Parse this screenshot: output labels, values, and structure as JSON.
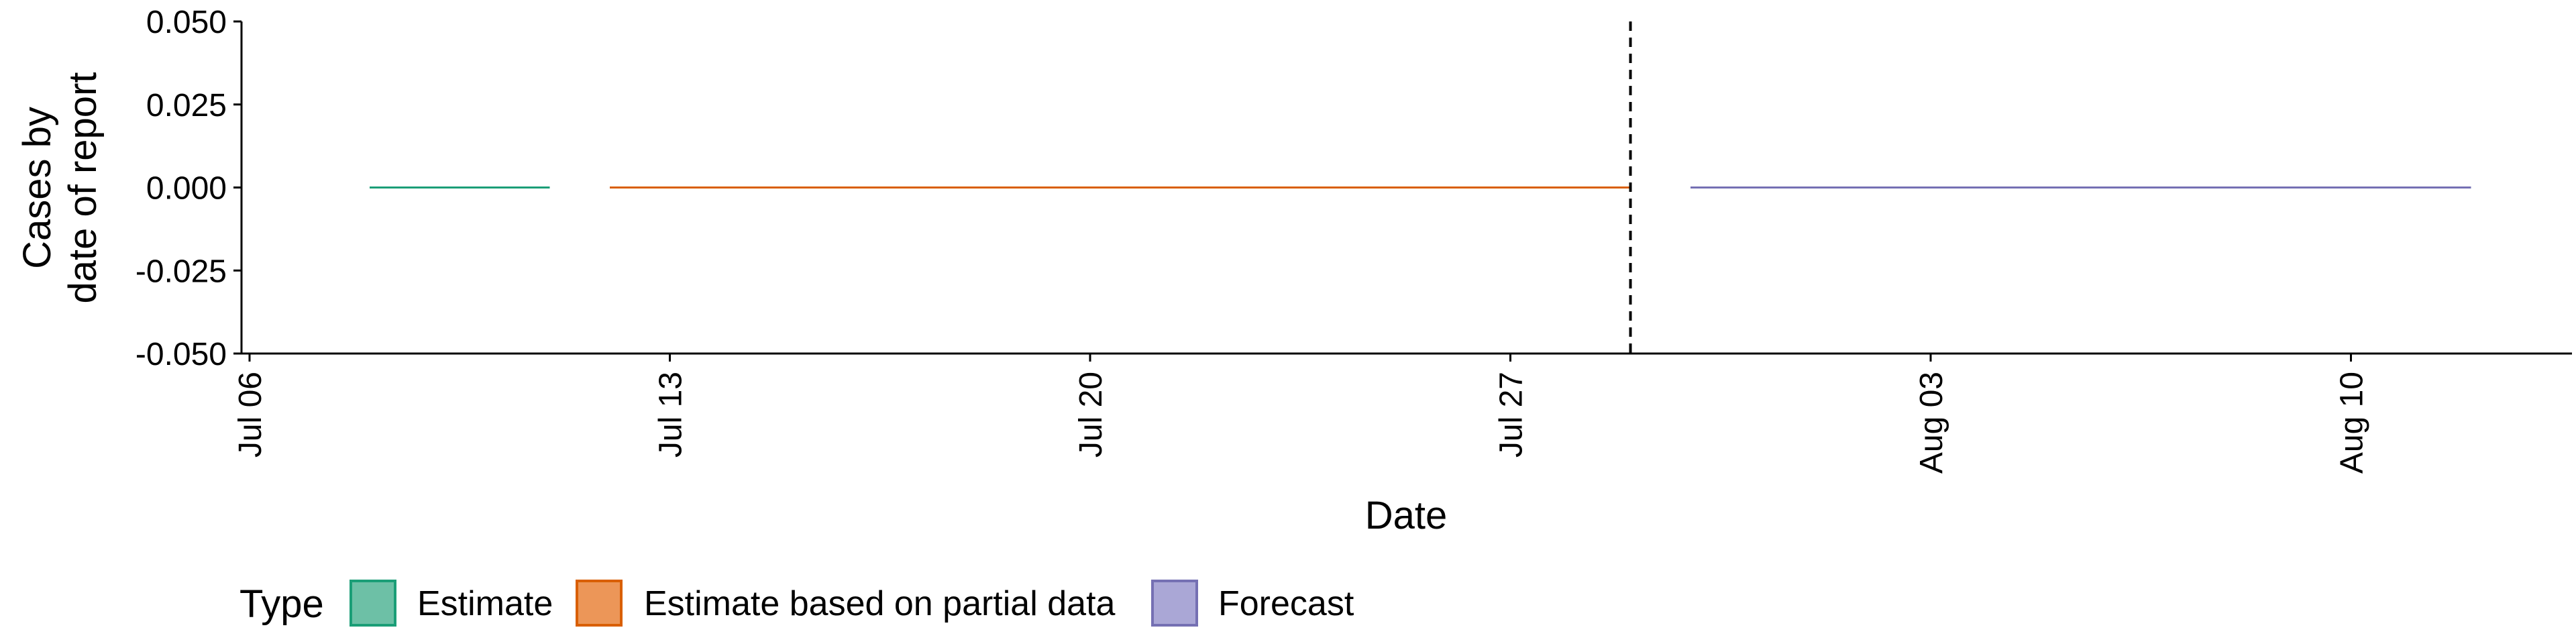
{
  "chart_data": {
    "type": "line",
    "title": "",
    "xlabel": "Date",
    "ylabel_lines": [
      "Cases by",
      "date of report"
    ],
    "x_tick_labels": [
      "Jul 06",
      "Jul 13",
      "Jul 20",
      "Jul 27",
      "Aug 03",
      "Aug 10"
    ],
    "x_ticks": [
      "2020-07-06",
      "2020-07-13",
      "2020-07-20",
      "2020-07-27",
      "2020-08-03",
      "2020-08-10"
    ],
    "xlim": [
      "2020-07-06",
      "2020-08-14"
    ],
    "y_ticks": [
      0.05,
      0.025,
      0.0,
      -0.025,
      -0.05
    ],
    "y_tick_labels": [
      "0.050",
      "0.025",
      "0.000",
      "-0.025",
      "-0.050"
    ],
    "ylim": [
      -0.05,
      0.05
    ],
    "series": [
      {
        "name": "Estimate",
        "color": "#1b9e77",
        "fill": "#6dc0a6",
        "points": [
          {
            "x": "2020-07-08",
            "y": 0
          },
          {
            "x": "2020-07-11",
            "y": 0
          }
        ]
      },
      {
        "name": "Estimate based on partial data",
        "color": "#d95f02",
        "fill": "#ec9658",
        "points": [
          {
            "x": "2020-07-12",
            "y": 0
          },
          {
            "x": "2020-07-29",
            "y": 0
          }
        ]
      },
      {
        "name": "Forecast",
        "color": "#7570b3",
        "fill": "#aaa7d6",
        "points": [
          {
            "x": "2020-07-30",
            "y": 0
          },
          {
            "x": "2020-08-12",
            "y": 0
          }
        ]
      }
    ],
    "vline": {
      "x": "2020-07-29",
      "style": "dashed"
    },
    "grid": false,
    "legend": {
      "title": "Type",
      "position": "bottom-left",
      "entries": [
        "Estimate",
        "Estimate based on partial data",
        "Forecast"
      ]
    }
  }
}
